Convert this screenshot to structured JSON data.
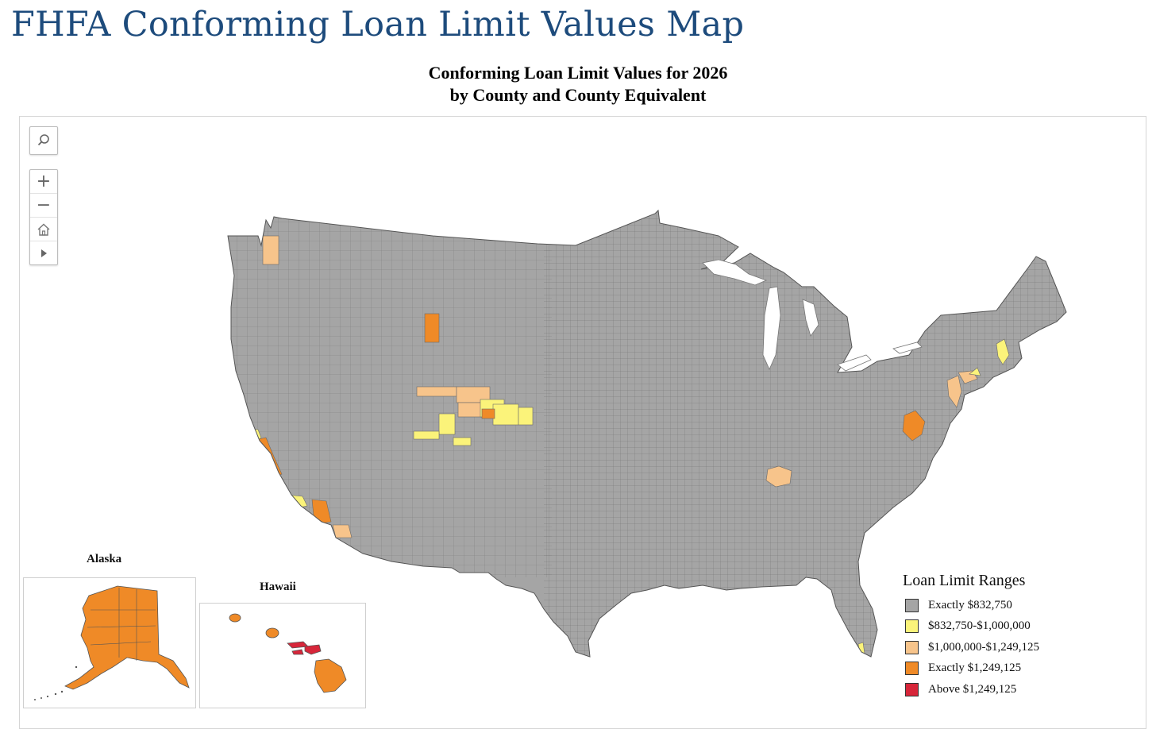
{
  "page": {
    "title": "FHFA Conforming Loan Limit Values Map"
  },
  "map": {
    "title_line1": "Conforming Loan Limit Values for 2026",
    "title_line2": "by County and County Equivalent"
  },
  "toolbar": {
    "search_icon": "magnifier-icon",
    "zoom_in_label": "+",
    "zoom_out_label": "−",
    "home_icon": "home-icon",
    "play_icon": "play-triangle-icon"
  },
  "insets": {
    "alaska_label": "Alaska",
    "hawaii_label": "Hawaii"
  },
  "legend": {
    "title": "Loan Limit Ranges",
    "items": [
      {
        "label": "Exactly $832,750",
        "color": "#a5a5a5"
      },
      {
        "label": "$832,750-$1,000,000",
        "color": "#fbf37a"
      },
      {
        "label": "$1,000,000-$1,249,125",
        "color": "#f7c48b"
      },
      {
        "label": "Exactly $1,249,125",
        "color": "#ef8a27"
      },
      {
        "label": "Above $1,249,125",
        "color": "#d7263a"
      }
    ]
  }
}
